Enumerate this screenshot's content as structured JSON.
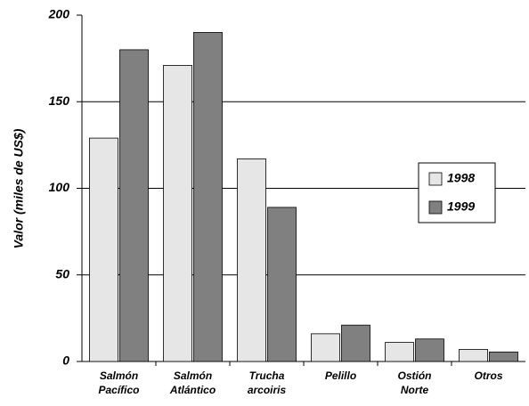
{
  "chart_data": {
    "type": "bar",
    "y_label": "Valor (miles de US$)",
    "categories": [
      "Salmón Pacífico",
      "Salmón Atlántico",
      "Trucha arcoiris",
      "Pelillo",
      "Ostión Norte",
      "Otros"
    ],
    "series": [
      {
        "name": "1998",
        "color": "#e6e6e6",
        "values": [
          129,
          171,
          117,
          16,
          11,
          7
        ]
      },
      {
        "name": "1999",
        "color": "#808080",
        "values": [
          180,
          190,
          89,
          21,
          13,
          5.5
        ]
      }
    ],
    "ylim": [
      0,
      200
    ],
    "yticks": [
      0,
      50,
      100,
      150,
      200
    ],
    "grid": true,
    "legend": "right"
  }
}
